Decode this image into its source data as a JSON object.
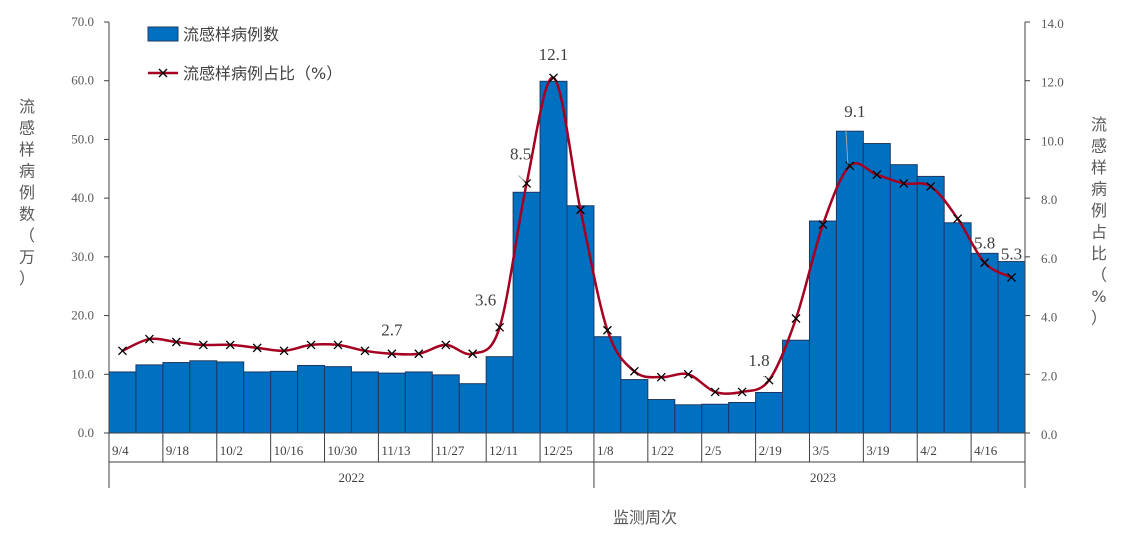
{
  "chart_data": {
    "type": "bar+line",
    "x_title": "监测周次",
    "y_left_label": "流感样病例数（万）",
    "y_right_label": "流感样病例占比（%）",
    "y_left_range": [
      0,
      70
    ],
    "y_right_range": [
      0,
      14
    ],
    "y_left_ticks": [
      "0.0",
      "10.0",
      "20.0",
      "30.0",
      "40.0",
      "50.0",
      "60.0",
      "70.0"
    ],
    "y_right_ticks": [
      "0.0",
      "2.0",
      "4.0",
      "6.0",
      "8.0",
      "10.0",
      "12.0",
      "14.0"
    ],
    "x_tick_labels": [
      {
        "label": "9/4",
        "index": 0
      },
      {
        "label": "9/18",
        "index": 2
      },
      {
        "label": "10/2",
        "index": 4
      },
      {
        "label": "10/16",
        "index": 6
      },
      {
        "label": "10/30",
        "index": 8
      },
      {
        "label": "11/13",
        "index": 10
      },
      {
        "label": "11/27",
        "index": 12
      },
      {
        "label": "12/11",
        "index": 14
      },
      {
        "label": "12/25",
        "index": 16
      },
      {
        "label": "1/8",
        "index": 18
      },
      {
        "label": "1/22",
        "index": 20
      },
      {
        "label": "2/5",
        "index": 22
      },
      {
        "label": "2/19",
        "index": 24
      },
      {
        "label": "3/5",
        "index": 26
      },
      {
        "label": "3/19",
        "index": 28
      },
      {
        "label": "4/2",
        "index": 30
      },
      {
        "label": "4/16",
        "index": 32
      }
    ],
    "years": [
      {
        "label": "2022",
        "from": 0,
        "to": 17
      },
      {
        "label": "2023",
        "from": 18,
        "to": 34
      }
    ],
    "series": [
      {
        "name": "流感样病例数",
        "type": "bar",
        "axis": "left",
        "color": "#0070c0",
        "values": [
          10.4,
          11.6,
          12.0,
          12.3,
          12.1,
          10.4,
          10.5,
          11.5,
          11.3,
          10.4,
          10.2,
          10.4,
          9.9,
          8.4,
          13.0,
          41.0,
          59.9,
          38.7,
          16.4,
          9.1,
          5.7,
          4.8,
          4.9,
          5.2,
          6.9,
          15.8,
          36.1,
          51.4,
          49.3,
          45.7,
          43.7,
          35.8,
          30.6,
          29.2
        ]
      },
      {
        "name": "流感样病例占比（%）",
        "type": "line",
        "axis": "right",
        "color": "#a50021",
        "values": [
          2.8,
          3.2,
          3.1,
          3.0,
          3.0,
          2.9,
          2.8,
          3.0,
          3.0,
          2.8,
          2.7,
          2.7,
          3.0,
          2.7,
          3.6,
          8.5,
          12.1,
          7.6,
          3.5,
          2.1,
          1.9,
          2.0,
          1.4,
          1.4,
          1.8,
          3.9,
          7.1,
          9.1,
          8.8,
          8.5,
          8.4,
          7.3,
          5.8,
          5.3
        ]
      }
    ],
    "data_labels": [
      {
        "index": 10,
        "text": "2.7"
      },
      {
        "index": 14,
        "text": "3.6"
      },
      {
        "index": 15,
        "text": "8.5"
      },
      {
        "index": 16,
        "text": "12.1"
      },
      {
        "index": 24,
        "text": "1.8"
      },
      {
        "index": 27,
        "text": "9.1"
      },
      {
        "index": 32,
        "text": "5.8"
      },
      {
        "index": 33,
        "text": "5.3"
      }
    ],
    "legend_position": "top-left",
    "grid": false
  }
}
